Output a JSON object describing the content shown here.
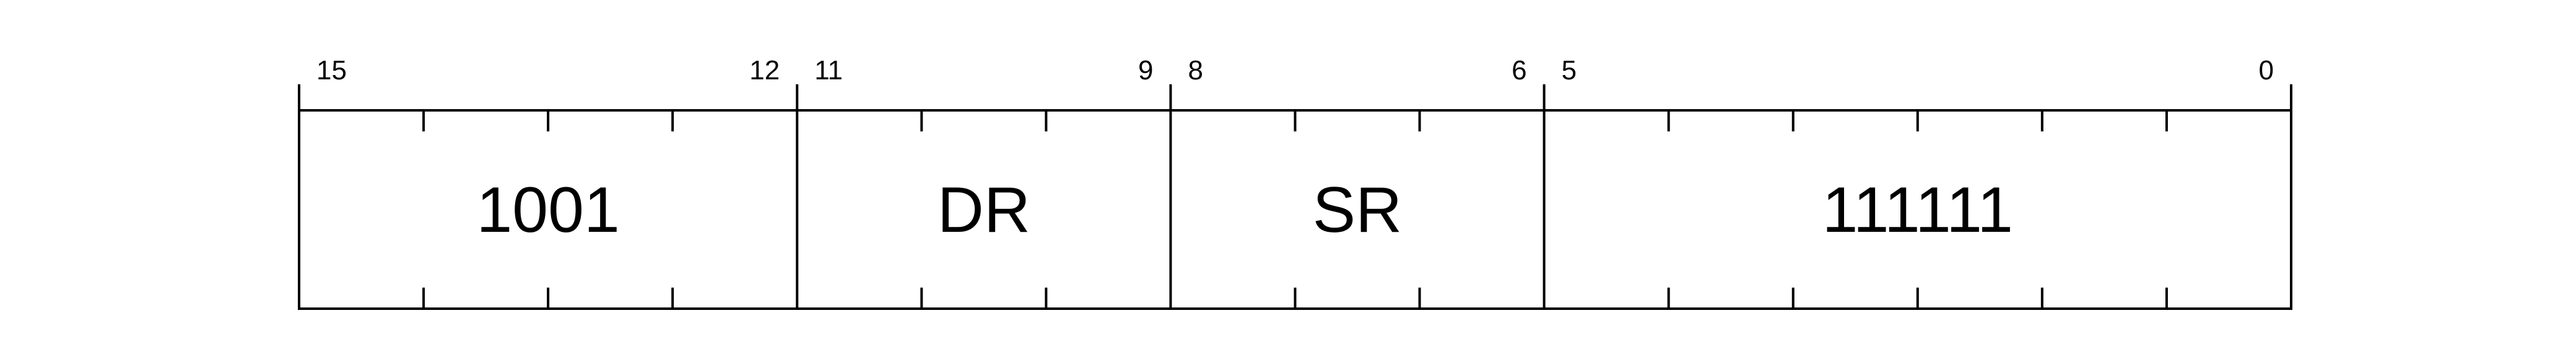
{
  "diagram": {
    "stroke_color": "#000000",
    "background": "#ffffff",
    "bits": 16,
    "fields": [
      {
        "label": "1001",
        "high_bit": "15",
        "low_bit": "12"
      },
      {
        "label": "DR",
        "high_bit": "11",
        "low_bit": "9"
      },
      {
        "label": "SR",
        "high_bit": "8",
        "low_bit": "6"
      },
      {
        "label": "111111",
        "high_bit": "5",
        "low_bit": "0"
      }
    ]
  }
}
